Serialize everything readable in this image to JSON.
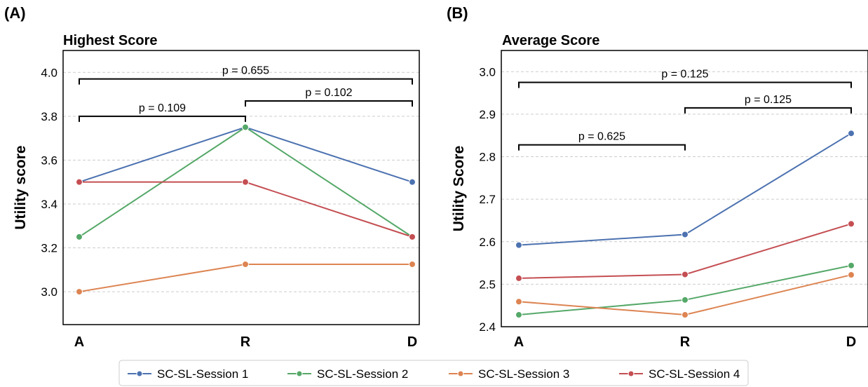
{
  "figure": {
    "legend": {
      "items": [
        {
          "label": "SC-SL-Session 1",
          "color": "#4c72b0"
        },
        {
          "label": "SC-SL-Session 2",
          "color": "#55a868"
        },
        {
          "label": "SC-SL-Session 3",
          "color": "#dd8452"
        },
        {
          "label": "SC-SL-Session 4",
          "color": "#c44e52"
        }
      ],
      "placement": "bottom-center"
    }
  },
  "chart_data": [
    {
      "panel_tag": "(A)",
      "type": "line",
      "title": "Highest Score",
      "xlabel": "",
      "ylabel": "Utility score",
      "categories": [
        "A",
        "R",
        "D"
      ],
      "ylim": [
        2.85,
        4.1
      ],
      "yticks": [
        3.0,
        3.2,
        3.4,
        3.6,
        3.8,
        4.0
      ],
      "ytick_labels": [
        "3.0",
        "3.2",
        "3.4",
        "3.6",
        "3.8",
        "4.0"
      ],
      "grid": "horizontal-dashed",
      "series": [
        {
          "name": "SC-SL-Session 1",
          "color": "#4c72b0",
          "values": [
            3.5,
            3.75,
            3.5
          ]
        },
        {
          "name": "SC-SL-Session 2",
          "color": "#55a868",
          "values": [
            3.25,
            3.75,
            3.25
          ]
        },
        {
          "name": "SC-SL-Session 3",
          "color": "#dd8452",
          "values": [
            3.0,
            3.125,
            3.125
          ]
        },
        {
          "name": "SC-SL-Session 4",
          "color": "#c44e52",
          "values": [
            3.5,
            3.5,
            3.25
          ]
        }
      ],
      "annotations": [
        {
          "from": 0,
          "to": 2,
          "y": 3.97,
          "text": "p = 0.655"
        },
        {
          "from": 0,
          "to": 1,
          "y": 3.8,
          "text": "p = 0.109"
        },
        {
          "from": 1,
          "to": 2,
          "y": 3.87,
          "text": "p = 0.102"
        }
      ]
    },
    {
      "panel_tag": "(B)",
      "type": "line",
      "title": "Average Score",
      "xlabel": "",
      "ylabel": "Utility Score",
      "categories": [
        "A",
        "R",
        "D"
      ],
      "ylim": [
        2.4,
        3.05
      ],
      "yticks": [
        2.4,
        2.5,
        2.6,
        2.7,
        2.8,
        2.9,
        3.0
      ],
      "ytick_labels": [
        "2.4",
        "2.5",
        "2.6",
        "2.7",
        "2.8",
        "2.9",
        "3.0"
      ],
      "grid": "horizontal-dashed",
      "series": [
        {
          "name": "SC-SL-Session 1",
          "color": "#4c72b0",
          "values": [
            2.592,
            2.617,
            2.855
          ]
        },
        {
          "name": "SC-SL-Session 2",
          "color": "#55a868",
          "values": [
            2.428,
            2.463,
            2.544
          ]
        },
        {
          "name": "SC-SL-Session 3",
          "color": "#dd8452",
          "values": [
            2.459,
            2.428,
            2.522
          ]
        },
        {
          "name": "SC-SL-Session 4",
          "color": "#c44e52",
          "values": [
            2.514,
            2.523,
            2.642
          ]
        }
      ],
      "annotations": [
        {
          "from": 0,
          "to": 2,
          "y": 2.975,
          "text": "p = 0.125"
        },
        {
          "from": 1,
          "to": 2,
          "y": 2.915,
          "text": "p = 0.125"
        },
        {
          "from": 0,
          "to": 1,
          "y": 2.828,
          "text": "p = 0.625"
        }
      ]
    }
  ]
}
